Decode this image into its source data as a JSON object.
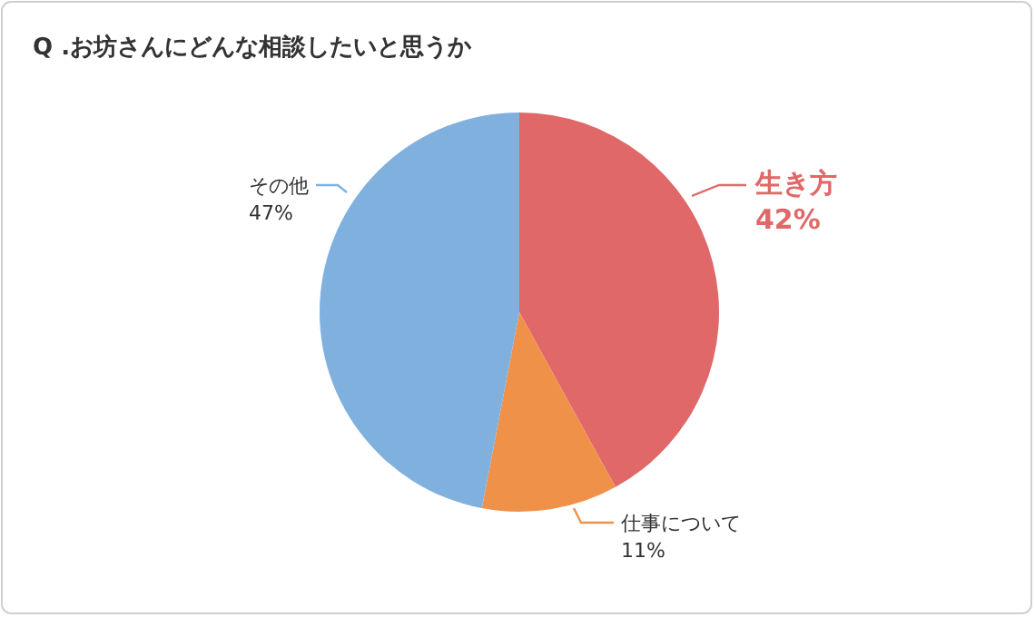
{
  "chart_data": {
    "type": "pie",
    "title": "Q .お坊さんにどんな相談したいと思うか",
    "categories": [
      "生き方",
      "仕事について",
      "その他"
    ],
    "values": [
      42,
      11,
      47
    ],
    "colors": [
      "#e06868",
      "#f0914a",
      "#80b1de"
    ],
    "value_labels": [
      "42%",
      "11%",
      "47%"
    ]
  }
}
